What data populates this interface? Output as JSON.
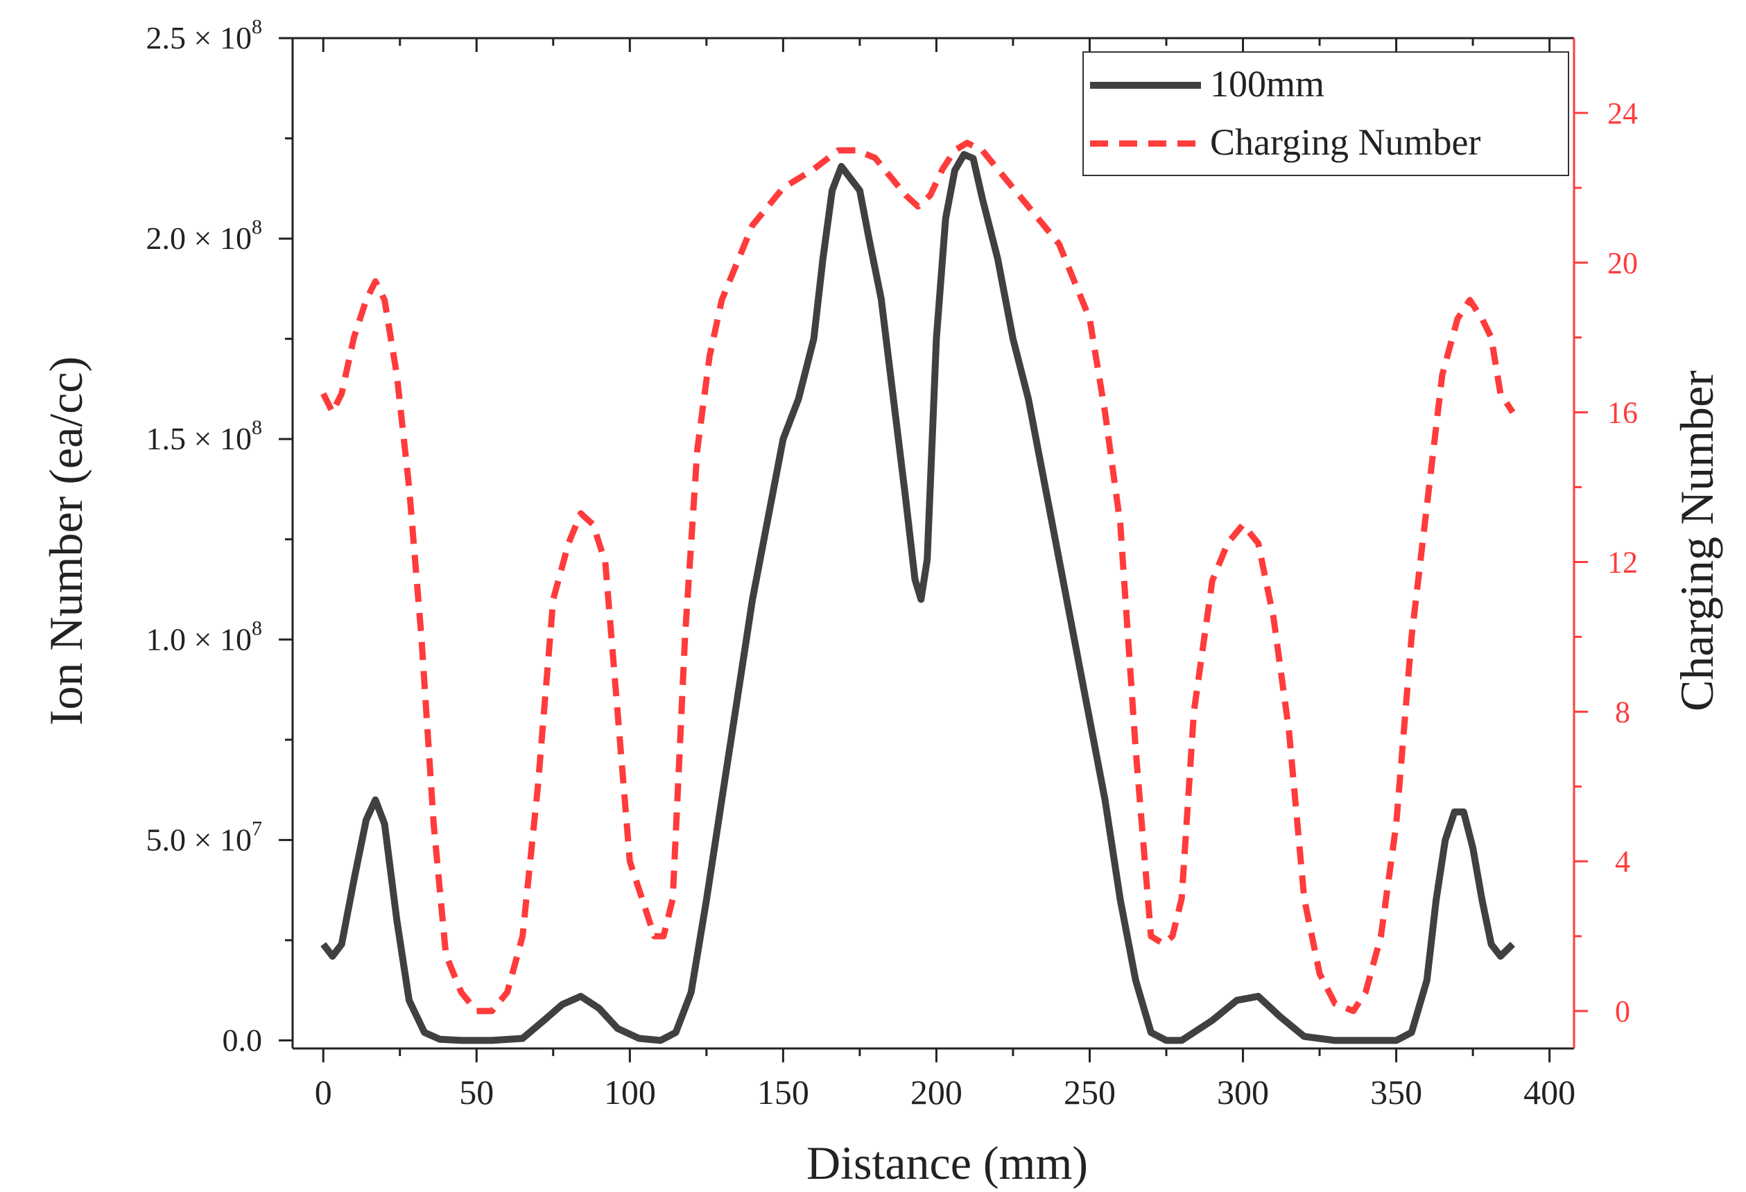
{
  "chart_data": {
    "type": "line",
    "title": "",
    "xlabel": "Distance (mm)",
    "ylabel": "Ion Number (ea/cc)",
    "y2label": "Charging Number",
    "xlim": [
      -10,
      408
    ],
    "ylim": [
      -2000000,
      250000000
    ],
    "y2lim": [
      -1,
      26
    ],
    "x_ticks": [
      0,
      50,
      100,
      150,
      200,
      250,
      300,
      350,
      400
    ],
    "x_tick_labels": [
      "0",
      "50",
      "100",
      "150",
      "200",
      "250",
      "300",
      "350",
      "400"
    ],
    "y_ticks": [
      0,
      50000000,
      100000000,
      150000000,
      200000000,
      250000000
    ],
    "y_tick_labels": [
      {
        "mantissa": "0.0",
        "exp": ""
      },
      {
        "mantissa": "5.0",
        "exp": "7"
      },
      {
        "mantissa": "1.0",
        "exp": "8"
      },
      {
        "mantissa": "1.5",
        "exp": "8"
      },
      {
        "mantissa": "2.0",
        "exp": "8"
      },
      {
        "mantissa": "2.5",
        "exp": "8"
      }
    ],
    "y2_ticks": [
      0,
      4,
      8,
      12,
      16,
      20,
      24
    ],
    "y2_tick_labels": [
      "0",
      "4",
      "8",
      "12",
      "16",
      "20",
      "24"
    ],
    "legend_position": "top-right",
    "series": [
      {
        "name": "100mm",
        "axis": "left",
        "color": "#404040",
        "style": "solid",
        "x": [
          0,
          3,
          6,
          10,
          14,
          17,
          20,
          24,
          28,
          33,
          38,
          45,
          55,
          65,
          72,
          78,
          84,
          90,
          96,
          103,
          110,
          115,
          120,
          125,
          130,
          135,
          140,
          145,
          150,
          155,
          160,
          163,
          166,
          169,
          172,
          175,
          178,
          182,
          186,
          190,
          193,
          195,
          197,
          200,
          203,
          206,
          209,
          212,
          215,
          220,
          225,
          230,
          235,
          240,
          245,
          250,
          255,
          260,
          265,
          270,
          275,
          280,
          290,
          298,
          305,
          312,
          320,
          330,
          340,
          350,
          355,
          360,
          363,
          366,
          369,
          372,
          375,
          378,
          381,
          384,
          388
        ],
        "y": [
          24000000,
          21000000,
          24000000,
          40000000,
          55000000,
          60000000,
          54000000,
          30000000,
          10000000,
          2000000,
          300000,
          0,
          0,
          500000,
          5000000,
          9000000,
          11000000,
          8000000,
          3000000,
          500000,
          0,
          2000000,
          12000000,
          35000000,
          60000000,
          85000000,
          110000000,
          130000000,
          150000000,
          160000000,
          175000000,
          195000000,
          212000000,
          218000000,
          215000000,
          212000000,
          200000000,
          185000000,
          160000000,
          135000000,
          115000000,
          110000000,
          120000000,
          175000000,
          205000000,
          217000000,
          221000000,
          220000000,
          210000000,
          195000000,
          175000000,
          160000000,
          140000000,
          120000000,
          100000000,
          80000000,
          60000000,
          35000000,
          15000000,
          2000000,
          0,
          0,
          5000000,
          10000000,
          11000000,
          6000000,
          1000000,
          0,
          0,
          0,
          2000000,
          15000000,
          35000000,
          50000000,
          57000000,
          57000000,
          48000000,
          35000000,
          24000000,
          21000000,
          24000000
        ]
      },
      {
        "name": "Charging Number",
        "axis": "right",
        "color": "#ff3b3b",
        "style": "dashed",
        "x": [
          0,
          3,
          6,
          10,
          14,
          17,
          20,
          24,
          28,
          32,
          36,
          40,
          45,
          50,
          55,
          60,
          65,
          70,
          75,
          80,
          84,
          88,
          92,
          96,
          100,
          104,
          106,
          108,
          111,
          114,
          118,
          122,
          126,
          130,
          140,
          150,
          160,
          168,
          174,
          180,
          185,
          190,
          194,
          198,
          202,
          206,
          210,
          215,
          220,
          225,
          230,
          240,
          245,
          250,
          255,
          260,
          265,
          270,
          274,
          277,
          280,
          284,
          290,
          295,
          300,
          305,
          310,
          315,
          320,
          325,
          330,
          336,
          340,
          345,
          350,
          355,
          360,
          365,
          370,
          374,
          378,
          381,
          384,
          388
        ],
        "y": [
          16.5,
          16,
          16.5,
          18,
          19,
          19.5,
          19,
          17,
          14,
          10,
          5,
          1.5,
          0.5,
          0,
          0,
          0.5,
          2,
          6,
          11,
          12.5,
          13.3,
          13,
          12,
          8,
          4,
          3,
          2.5,
          2,
          2,
          3,
          10,
          15,
          17.5,
          19,
          21,
          22,
          22.5,
          23,
          23,
          22.8,
          22.3,
          21.8,
          21.5,
          21.8,
          22.5,
          23,
          23.2,
          23,
          22.5,
          22,
          21.5,
          20.5,
          19.5,
          18.5,
          16,
          13,
          7,
          2,
          1.8,
          2,
          3,
          8,
          11.5,
          12.5,
          13,
          12.5,
          10.5,
          7.5,
          3,
          1,
          0.2,
          0,
          0.5,
          2,
          5,
          10,
          13.5,
          17,
          18.5,
          19,
          18.5,
          18,
          16.5,
          16
        ]
      }
    ]
  }
}
